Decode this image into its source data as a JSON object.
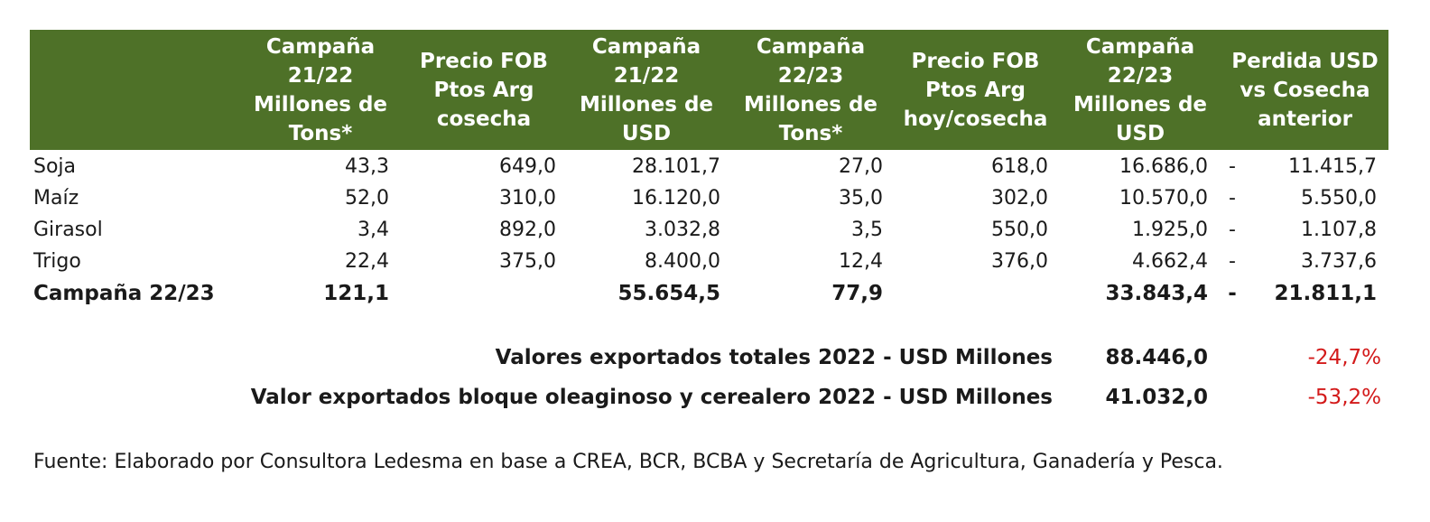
{
  "table": {
    "headers": [
      "",
      "Campaña\n21/22\nMillones de\nTons*",
      "Precio FOB\nPtos Arg\ncosecha",
      "Campaña\n21/22\nMillones de\nUSD",
      "Campaña\n22/23\nMillones de\nTons*",
      "Precio FOB\nPtos Arg\nhoy/cosecha",
      "Campaña\n22/23\nMillones de\nUSD",
      "Perdida USD\nvs Cosecha\nanterior"
    ],
    "rows": [
      {
        "label": "Soja",
        "c1": "43,3",
        "c2": "649,0",
        "c3": "28.101,7",
        "c4": "27,0",
        "c5": "618,0",
        "c6": "16.686,0",
        "dash": "-",
        "c7": "11.415,7"
      },
      {
        "label": "Maíz",
        "c1": "52,0",
        "c2": "310,0",
        "c3": "16.120,0",
        "c4": "35,0",
        "c5": "302,0",
        "c6": "10.570,0",
        "dash": "-",
        "c7": "5.550,0"
      },
      {
        "label": "Girasol",
        "c1": "3,4",
        "c2": "892,0",
        "c3": "3.032,8",
        "c4": "3,5",
        "c5": "550,0",
        "c6": "1.925,0",
        "dash": "-",
        "c7": "1.107,8"
      },
      {
        "label": "Trigo",
        "c1": "22,4",
        "c2": "375,0",
        "c3": "8.400,0",
        "c4": "12,4",
        "c5": "376,0",
        "c6": "4.662,4",
        "dash": "-",
        "c7": "3.737,6"
      }
    ],
    "total": {
      "label": "Campaña 22/23",
      "c1": "121,1",
      "c3": "55.654,5",
      "c4": "77,9",
      "c6": "33.843,4",
      "dash": "-",
      "c7": "21.811,1"
    }
  },
  "summary": [
    {
      "label": "Valores exportados totales 2022 - USD Millones",
      "value": "88.446,0",
      "pct": "-24,7%"
    },
    {
      "label": "Valor exportados bloque oleaginoso y cerealero 2022 - USD Millones",
      "value": "41.032,0",
      "pct": "-53,2%"
    }
  ],
  "source": "Fuente: Elaborado por Consultora Ledesma en base a CREA, BCR, BCBA y Secretaría de Agricultura, Ganadería y Pesca.",
  "colors": {
    "header_bg": "#4e7128",
    "header_text": "#ffffff",
    "negative": "#d31a1a"
  }
}
